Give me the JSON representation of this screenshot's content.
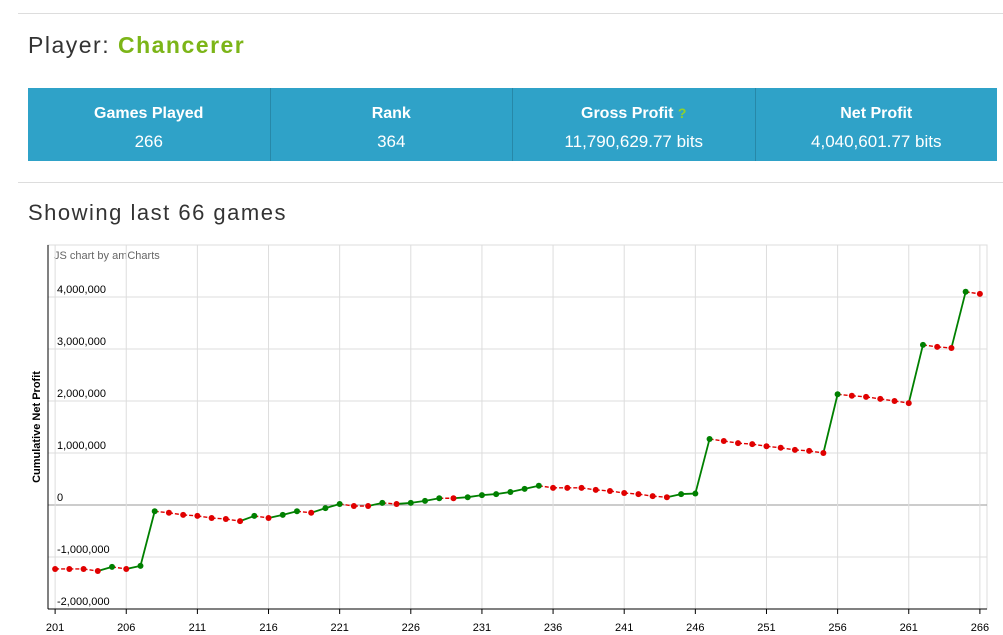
{
  "header": {
    "prefix": "Player:",
    "name": "Chancerer"
  },
  "stats": [
    {
      "label": "Games Played",
      "value": "266"
    },
    {
      "label": "Rank",
      "value": "364"
    },
    {
      "label": "Gross Profit",
      "hint": "?",
      "value": "11,790,629.77 bits"
    },
    {
      "label": "Net Profit",
      "value": "4,040,601.77 bits"
    }
  ],
  "section_title": "Showing last 66 games",
  "chart_data": {
    "type": "line",
    "credit": "JS chart by amCharts",
    "ylabel": "Cumulative Net Profit",
    "up_color": "#008000",
    "down_color": "#e00000",
    "grid": true,
    "x": [
      201,
      202,
      203,
      204,
      205,
      206,
      207,
      208,
      209,
      210,
      211,
      212,
      213,
      214,
      215,
      216,
      217,
      218,
      219,
      220,
      221,
      222,
      223,
      224,
      225,
      226,
      227,
      228,
      229,
      230,
      231,
      232,
      233,
      234,
      235,
      236,
      237,
      238,
      239,
      240,
      241,
      242,
      243,
      244,
      245,
      246,
      247,
      248,
      249,
      250,
      251,
      252,
      253,
      254,
      255,
      256,
      257,
      258,
      259,
      260,
      261,
      262,
      263,
      264,
      265,
      266
    ],
    "values": [
      -1230000,
      -1230000,
      -1230000,
      -1270000,
      -1190000,
      -1230000,
      -1170000,
      -120000,
      -150000,
      -190000,
      -210000,
      -250000,
      -270000,
      -310000,
      -210000,
      -250000,
      -190000,
      -120000,
      -150000,
      -60000,
      20000,
      -20000,
      -20000,
      40000,
      20000,
      40000,
      80000,
      130000,
      130000,
      150000,
      190000,
      210000,
      250000,
      310000,
      370000,
      330000,
      330000,
      330000,
      290000,
      270000,
      230000,
      210000,
      170000,
      150000,
      210000,
      220000,
      1270000,
      1230000,
      1190000,
      1170000,
      1130000,
      1100000,
      1060000,
      1040000,
      1000000,
      2130000,
      2100000,
      2080000,
      2040000,
      2000000,
      1960000,
      3080000,
      3040000,
      3020000,
      4100000,
      4060000
    ],
    "xlim": [
      200.5,
      266.5
    ],
    "xticks": [
      201,
      206,
      211,
      216,
      221,
      226,
      231,
      236,
      241,
      246,
      251,
      256,
      261,
      266
    ],
    "ylim": [
      -2000000,
      5000000
    ],
    "yticks": [
      {
        "value": -2000000,
        "label": "-2,000,000"
      },
      {
        "value": -1000000,
        "label": "-1,000,000"
      },
      0,
      {
        "value": 1000000,
        "label": "1,000,000"
      },
      {
        "value": 2000000,
        "label": "2,000,000"
      },
      {
        "value": 3000000,
        "label": "3,000,000"
      },
      {
        "value": 4000000,
        "label": "4,000,000"
      }
    ]
  }
}
